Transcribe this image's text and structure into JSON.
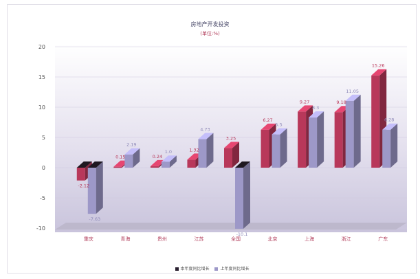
{
  "chart_data": {
    "type": "bar",
    "title": "房地产开发投资",
    "subtitle": "(单位:%)",
    "categories": [
      "重庆",
      "青海",
      "贵州",
      "江苏",
      "全国",
      "北京",
      "上海",
      "浙江",
      "广东"
    ],
    "ylim": [
      -10,
      20
    ],
    "yticks": [
      -10,
      -5,
      0,
      5,
      10,
      15,
      20
    ],
    "series": [
      {
        "name": "本年度同比增长",
        "color": "#b8385a",
        "values": [
          -2.12,
          0.15,
          0.24,
          1.32,
          3.25,
          6.27,
          9.27,
          9.18,
          15.26
        ]
      },
      {
        "name": "上年度同比增长",
        "color": "#9d98c8",
        "values": [
          -7.63,
          2.19,
          1.0,
          4.73,
          -10.1,
          5.5,
          8.3,
          11.05,
          6.28
        ]
      }
    ],
    "data_labels": [
      [
        "-2.12",
        "0.15",
        "0.24",
        "1.32",
        "3.25",
        "6.27",
        "9.27",
        "9.18",
        "15.26"
      ],
      [
        "-7.63",
        "2.19",
        "1.0",
        "4.73",
        "-10.1",
        "5.5",
        "8.3",
        "11.05",
        "6.28"
      ]
    ],
    "grid": true,
    "legend": "bottom"
  }
}
